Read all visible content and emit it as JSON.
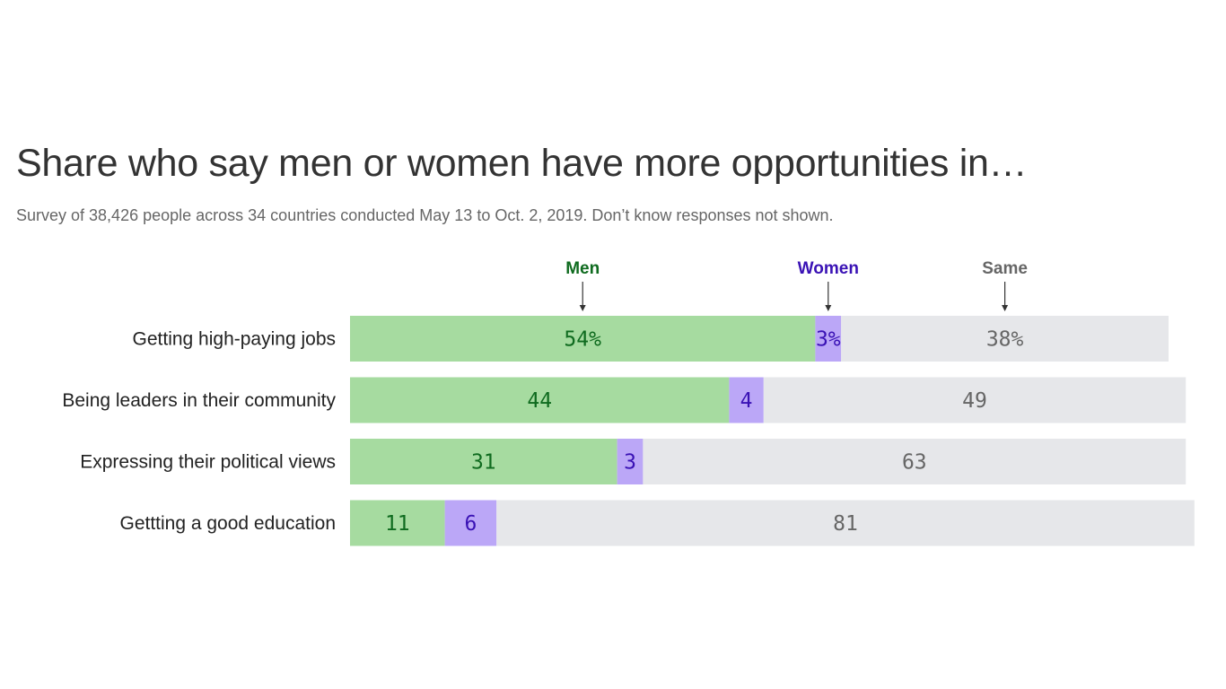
{
  "chart_data": {
    "type": "bar",
    "orientation": "horizontal",
    "stacked": true,
    "title": "Share who say men or women have more opportunities in…",
    "subtitle": "Survey of 38,426 people across 34 countries conducted May 13 to Oct. 2, 2019. Don’t know responses not shown.",
    "categories": [
      "Getting high-paying jobs",
      "Being leaders in their community",
      "Expressing their political views",
      "Gettting a good education"
    ],
    "series": [
      {
        "name": "Men",
        "values": [
          54,
          44,
          31,
          11
        ],
        "labels": [
          "54%",
          "44",
          "31",
          "11"
        ],
        "color": "#a6dba0",
        "text_color": "#0f6b1f"
      },
      {
        "name": "Women",
        "values": [
          3,
          4,
          3,
          6
        ],
        "labels": [
          "3%",
          "4",
          "3",
          "6"
        ],
        "color": "#bba7f7",
        "text_color": "#3a12b5"
      },
      {
        "name": "Same",
        "values": [
          38,
          49,
          63,
          81
        ],
        "labels": [
          "38%",
          "49",
          "63",
          "81"
        ],
        "color": "#e6e7ea",
        "text_color": "#666666"
      }
    ],
    "legend_placement": "top, above first bar with arrows",
    "grid": false,
    "unit": "%"
  }
}
